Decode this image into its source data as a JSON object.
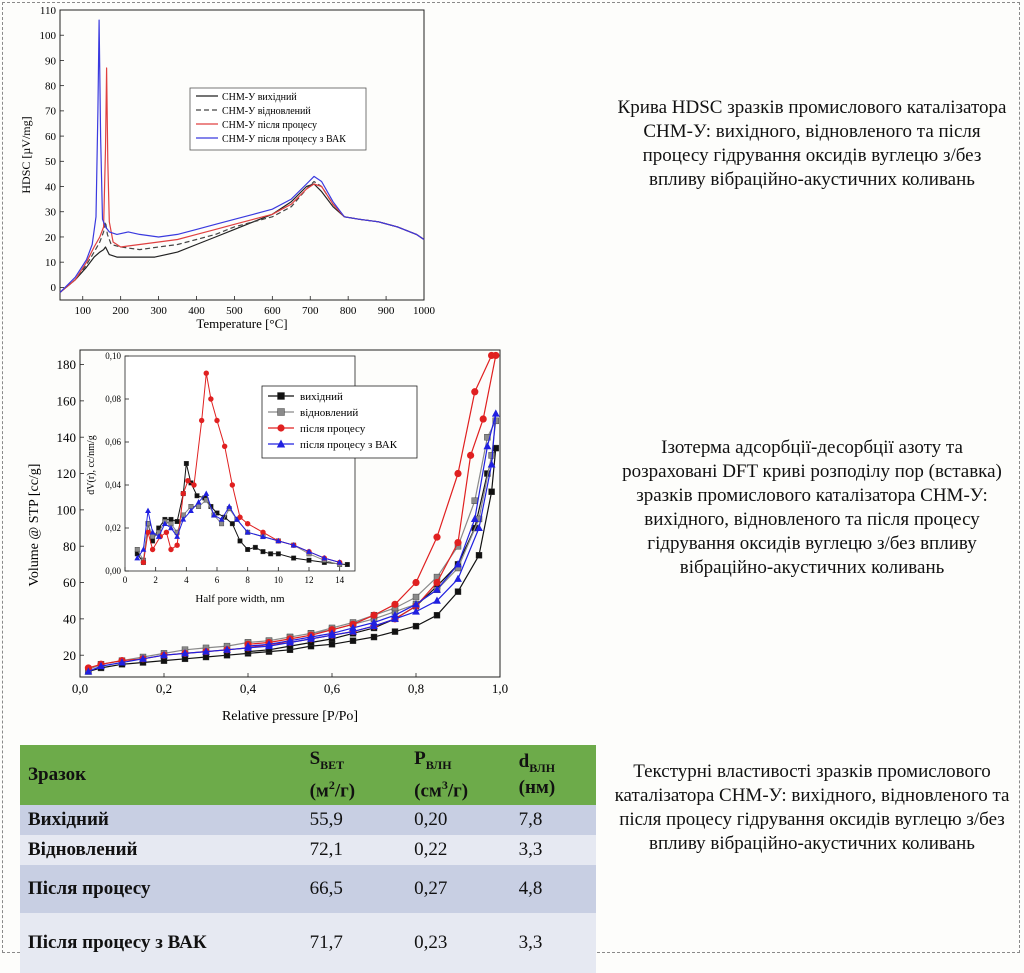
{
  "captions": {
    "hdsc": "Крива HDSC зразків промислового каталізатора СНМ-У: вихідного, відновленого та після процесу гідрування оксидів вуглецю з/без впливу вібраційно-акустичних коливань",
    "isotherm": "Ізотерма адсорбції-десорбції азоту та розраховані DFT криві розподілу пор (вставка) зразків промислового каталізатора СНМ-У: вихідного, відновленого та після процесу гідрування оксидів вуглецю з/без впливу вібраційно-акустичних коливань",
    "table": "Текстурні властивості зразків промислового каталізатора СНМ-У: вихідного, відновленого та після процесу гідрування оксидів вуглецю з/без впливу вібраційно-акустичних коливань"
  },
  "table": {
    "headers": {
      "sample": "Зразок",
      "s_main": "S",
      "s_sub": "BET",
      "s_unit_a": "(м",
      "s_unit_sup": "2",
      "s_unit_b": "/г)",
      "p_main": "P",
      "p_sub": "ВЛН",
      "p_unit_a": "(см",
      "p_unit_sup": "3",
      "p_unit_b": "/г)",
      "d_main": "d",
      "d_sub": "ВЛН",
      "d_unit": "(нм)"
    },
    "rows": [
      {
        "name": "Вихідний",
        "s": "55,9",
        "p": "0,20",
        "d": "7,8"
      },
      {
        "name": "Відновлений",
        "s": "72,1",
        "p": "0,22",
        "d": "3,3"
      },
      {
        "name": "Після процесу",
        "s": "66,5",
        "p": "0,27",
        "d": "4,8"
      },
      {
        "name": "Після процесу з ВАК",
        "s": "71,7",
        "p": "0,23",
        "d": "3,3"
      }
    ]
  },
  "chart_data": [
    {
      "type": "line",
      "xlabel": "Temperature [°C]",
      "ylabel": "HDSC [µV/mg]",
      "xlim": [
        40,
        1000
      ],
      "ylim": [
        -5,
        110
      ],
      "xticks": [
        100,
        200,
        300,
        400,
        500,
        600,
        700,
        800,
        900,
        1000
      ],
      "yticks": [
        0,
        10,
        20,
        30,
        40,
        50,
        60,
        70,
        80,
        90,
        100,
        110
      ],
      "legend_position": "upper-center",
      "series": [
        {
          "name": "СНМ-У вихідний",
          "color": "#222222",
          "dash": "none",
          "x": [
            40,
            80,
            110,
            130,
            145,
            155,
            160,
            170,
            190,
            230,
            290,
            350,
            400,
            450,
            500,
            550,
            600,
            650,
            690,
            710,
            730,
            760,
            790,
            830,
            880,
            930,
            980,
            1000
          ],
          "y": [
            -2,
            3,
            8,
            12,
            14,
            15,
            16,
            13,
            12,
            12,
            12,
            14,
            17,
            20,
            23,
            26,
            29,
            34,
            40,
            41,
            38,
            32,
            28,
            27,
            26,
            24,
            21,
            19
          ]
        },
        {
          "name": "СНМ-У відновлений",
          "color": "#444444",
          "dash": "5,3",
          "x": [
            40,
            80,
            110,
            130,
            145,
            155,
            160,
            165,
            175,
            200,
            250,
            300,
            350,
            400,
            450,
            500,
            550,
            600,
            650,
            690,
            710,
            730,
            760,
            790,
            830,
            880,
            930,
            980,
            1000
          ],
          "y": [
            -2,
            3,
            9,
            14,
            18,
            22,
            26,
            21,
            17,
            16,
            15,
            16,
            17,
            19,
            21,
            24,
            26,
            28,
            32,
            39,
            42,
            40,
            33,
            28,
            27,
            26,
            24,
            21,
            19
          ]
        },
        {
          "name": "СНМ-У після процесу",
          "color": "#e04040",
          "dash": "none",
          "x": [
            40,
            80,
            110,
            130,
            145,
            155,
            160,
            163,
            166,
            170,
            180,
            200,
            250,
            300,
            350,
            400,
            450,
            500,
            550,
            600,
            650,
            690,
            710,
            730,
            760,
            790,
            830,
            880,
            930,
            980,
            1000
          ],
          "y": [
            -2,
            3,
            10,
            16,
            20,
            24,
            55,
            87,
            50,
            26,
            18,
            16,
            17,
            18,
            19,
            21,
            23,
            25,
            27,
            29,
            33,
            39,
            41,
            40,
            33,
            28,
            27,
            26,
            24,
            21,
            19
          ]
        },
        {
          "name": "СНМ-У після процесу з ВАК",
          "color": "#3a3adf",
          "dash": "none",
          "x": [
            40,
            80,
            110,
            125,
            135,
            140,
            143,
            147,
            152,
            160,
            170,
            190,
            220,
            250,
            300,
            350,
            400,
            450,
            500,
            550,
            600,
            650,
            690,
            710,
            730,
            760,
            790,
            830,
            880,
            930,
            980,
            1000
          ],
          "y": [
            -2,
            4,
            11,
            17,
            28,
            70,
            106,
            60,
            27,
            24,
            22,
            21,
            22,
            21,
            20,
            21,
            23,
            25,
            27,
            29,
            31,
            35,
            41,
            44,
            42,
            34,
            28,
            27,
            26,
            24,
            21,
            19
          ]
        }
      ]
    },
    {
      "type": "line",
      "xlabel": "Relative pressure [P/Po]",
      "ylabel": "Volume @ STP [cc/g]",
      "xlim": [
        0,
        1.0
      ],
      "ylim": [
        8,
        188
      ],
      "xticks": [
        "0,0",
        "0,2",
        "0,4",
        "0,6",
        "0,8",
        "1,0"
      ],
      "yticks": [
        "20",
        "40",
        "60",
        "80",
        "100",
        "120",
        "140",
        "160",
        "180"
      ],
      "legend_position": "upper-right",
      "series": [
        {
          "name": "вихідний",
          "color": "#111111",
          "marker": "square",
          "x": [
            0.02,
            0.05,
            0.1,
            0.15,
            0.2,
            0.25,
            0.3,
            0.35,
            0.4,
            0.45,
            0.5,
            0.55,
            0.6,
            0.65,
            0.7,
            0.75,
            0.8,
            0.85,
            0.9,
            0.95,
            0.98,
            0.99,
            0.97,
            0.94,
            0.9,
            0.85,
            0.8,
            0.75,
            0.7,
            0.65,
            0.6,
            0.55,
            0.5,
            0.45,
            0.4
          ],
          "y": [
            11,
            13,
            15,
            16,
            17,
            18,
            19,
            20,
            21,
            22,
            23,
            25,
            26,
            28,
            30,
            33,
            36,
            42,
            55,
            75,
            110,
            134,
            120,
            90,
            70,
            58,
            47,
            40,
            35,
            32,
            29,
            27,
            25,
            23,
            22
          ]
        },
        {
          "name": "відновлений",
          "color": "#8a8a8a",
          "marker": "square",
          "x": [
            0.02,
            0.05,
            0.1,
            0.15,
            0.2,
            0.25,
            0.3,
            0.35,
            0.4,
            0.45,
            0.5,
            0.55,
            0.6,
            0.65,
            0.7,
            0.75,
            0.8,
            0.85,
            0.9,
            0.95,
            0.98,
            0.99,
            0.97,
            0.94,
            0.9,
            0.85,
            0.8,
            0.75,
            0.7,
            0.65,
            0.6,
            0.55,
            0.5,
            0.45,
            0.4
          ],
          "y": [
            12,
            15,
            17,
            19,
            21,
            23,
            24,
            25,
            27,
            28,
            30,
            32,
            34,
            37,
            40,
            44,
            48,
            56,
            68,
            95,
            130,
            149,
            140,
            105,
            80,
            63,
            52,
            46,
            42,
            38,
            35,
            32,
            30,
            28,
            27
          ]
        },
        {
          "name": "після процесу",
          "color": "#e02020",
          "marker": "circle",
          "x": [
            0.02,
            0.05,
            0.1,
            0.15,
            0.2,
            0.25,
            0.3,
            0.35,
            0.4,
            0.45,
            0.5,
            0.55,
            0.6,
            0.65,
            0.7,
            0.75,
            0.8,
            0.85,
            0.9,
            0.93,
            0.96,
            0.99,
            0.98,
            0.94,
            0.9,
            0.85,
            0.8,
            0.75,
            0.7,
            0.65,
            0.6,
            0.55,
            0.5,
            0.45,
            0.4
          ],
          "y": [
            13,
            15,
            17,
            18,
            20,
            21,
            22,
            23,
            24,
            26,
            27,
            29,
            31,
            33,
            36,
            40,
            47,
            60,
            82,
            130,
            150,
            185,
            185,
            165,
            120,
            85,
            60,
            48,
            42,
            37,
            34,
            31,
            29,
            27,
            26
          ]
        },
        {
          "name": "після процесу з ВАК",
          "color": "#2020e0",
          "marker": "triangle",
          "x": [
            0.02,
            0.05,
            0.1,
            0.15,
            0.2,
            0.25,
            0.3,
            0.35,
            0.4,
            0.45,
            0.5,
            0.55,
            0.6,
            0.65,
            0.7,
            0.75,
            0.8,
            0.85,
            0.9,
            0.95,
            0.98,
            0.99,
            0.97,
            0.94,
            0.9,
            0.85,
            0.8,
            0.75,
            0.7,
            0.65,
            0.6,
            0.55,
            0.5,
            0.45,
            0.4
          ],
          "y": [
            11,
            14,
            16,
            18,
            20,
            21,
            22,
            23,
            24,
            25,
            27,
            29,
            31,
            33,
            36,
            40,
            44,
            50,
            62,
            90,
            125,
            153,
            135,
            95,
            70,
            56,
            48,
            42,
            38,
            35,
            32,
            30,
            28,
            26,
            25
          ]
        }
      ]
    },
    {
      "type": "line",
      "inset": true,
      "xlabel": "Half pore width, nm",
      "ylabel": "dV(r), cc/nm/g",
      "xlim": [
        0,
        15
      ],
      "ylim": [
        0,
        0.1
      ],
      "xticks": [
        "0",
        "2",
        "4",
        "6",
        "8",
        "10",
        "12",
        "14"
      ],
      "yticks": [
        "0,00",
        "0,02",
        "0,04",
        "0,06",
        "0,08",
        "0,10"
      ],
      "series": [
        {
          "name": "вихідний",
          "x": [
            0.8,
            1.2,
            1.5,
            1.8,
            2.2,
            2.6,
            3.0,
            3.4,
            3.8,
            4.0,
            4.3,
            4.7,
            5.2,
            5.6,
            6.0,
            6.5,
            7.0,
            7.5,
            8.0,
            8.5,
            9.0,
            9.5,
            10.0,
            11.0,
            12.0,
            13.0,
            14.5
          ],
          "y": [
            0.008,
            0.004,
            0.022,
            0.014,
            0.02,
            0.024,
            0.024,
            0.023,
            0.036,
            0.05,
            0.041,
            0.035,
            0.034,
            0.03,
            0.027,
            0.025,
            0.022,
            0.014,
            0.01,
            0.011,
            0.009,
            0.008,
            0.008,
            0.006,
            0.005,
            0.004,
            0.003
          ]
        },
        {
          "name": "відновлений",
          "x": [
            0.8,
            1.2,
            1.5,
            1.8,
            2.2,
            2.6,
            3.0,
            3.4,
            3.8,
            4.3,
            4.8,
            5.3,
            5.8,
            6.3,
            6.8,
            7.3,
            8.0,
            9.0,
            10.0,
            11.0,
            12.0,
            13.0,
            14.0
          ],
          "y": [
            0.01,
            0.005,
            0.022,
            0.016,
            0.018,
            0.023,
            0.022,
            0.018,
            0.026,
            0.03,
            0.03,
            0.033,
            0.026,
            0.022,
            0.029,
            0.024,
            0.018,
            0.016,
            0.014,
            0.012,
            0.008,
            0.005,
            0.003
          ]
        },
        {
          "name": "після процесу",
          "x": [
            1.2,
            1.5,
            1.8,
            2.3,
            2.7,
            3.0,
            3.4,
            3.8,
            4.1,
            4.5,
            5.0,
            5.3,
            5.6,
            6.0,
            6.5,
            7.0,
            7.5,
            8.0,
            9.0,
            10.0,
            11.0,
            12.0,
            13.0,
            14.0
          ],
          "y": [
            0.004,
            0.018,
            0.01,
            0.016,
            0.018,
            0.01,
            0.012,
            0.036,
            0.042,
            0.04,
            0.07,
            0.092,
            0.08,
            0.07,
            0.058,
            0.04,
            0.025,
            0.022,
            0.018,
            0.014,
            0.012,
            0.009,
            0.006,
            0.004
          ]
        },
        {
          "name": "після процесу з ВАК",
          "x": [
            0.8,
            1.2,
            1.5,
            1.8,
            2.2,
            2.6,
            3.0,
            3.4,
            3.8,
            4.3,
            4.8,
            5.3,
            5.8,
            6.3,
            6.8,
            7.3,
            8.0,
            9.0,
            10.0,
            11.0,
            12.0,
            13.0,
            14.0
          ],
          "y": [
            0.006,
            0.01,
            0.028,
            0.018,
            0.016,
            0.022,
            0.02,
            0.016,
            0.024,
            0.028,
            0.032,
            0.036,
            0.026,
            0.024,
            0.03,
            0.024,
            0.018,
            0.016,
            0.014,
            0.012,
            0.009,
            0.006,
            0.004
          ]
        }
      ]
    }
  ]
}
